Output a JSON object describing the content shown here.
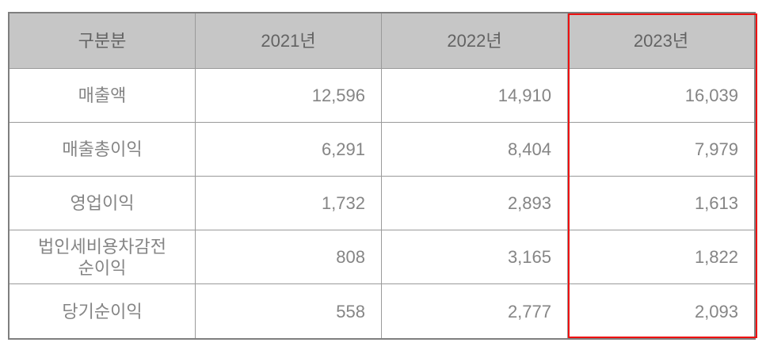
{
  "chart_data": {
    "type": "table",
    "row_header_label": "구분분",
    "categories": [
      "2021년",
      "2022년",
      "2023년"
    ],
    "series": [
      {
        "name": "매출액",
        "values": [
          12596,
          14910,
          16039
        ]
      },
      {
        "name": "매출총이익",
        "values": [
          6291,
          8404,
          7979
        ]
      },
      {
        "name": "영업이익",
        "values": [
          1732,
          2893,
          1613
        ]
      },
      {
        "name": "법인세비용차감전 순이익",
        "values": [
          808,
          3165,
          1822
        ]
      },
      {
        "name": "당기순이익",
        "values": [
          558,
          2777,
          2093
        ]
      }
    ],
    "highlighted_column": "2023년",
    "layout": {
      "grid": true,
      "highlight_style": "red-outline-around-last-column"
    }
  },
  "table": {
    "header": {
      "col0": "구분분",
      "col1": "2021년",
      "col2": "2022년",
      "col3": "2023년"
    },
    "rows": [
      {
        "label": "매출액",
        "v1": "12,596",
        "v2": "14,910",
        "v3": "16,039"
      },
      {
        "label": "매출총이익",
        "v1": "6,291",
        "v2": "8,404",
        "v3": "7,979"
      },
      {
        "label": "영업이익",
        "v1": "1,732",
        "v2": "2,893",
        "v3": "1,613"
      },
      {
        "label": "법인세비용차감전",
        "label2": "순이익",
        "v1": "808",
        "v2": "3,165",
        "v3": "1,822"
      },
      {
        "label": "당기순이익",
        "v1": "558",
        "v2": "2,777",
        "v3": "2,093"
      }
    ],
    "colors": {
      "header_bg": "#c6c6c6",
      "header_text": "#636363",
      "cell_text": "#858585",
      "border_outer": "#7f7f7f",
      "border_inner": "#9a9a9a",
      "highlight_border": "#ee1111"
    }
  }
}
